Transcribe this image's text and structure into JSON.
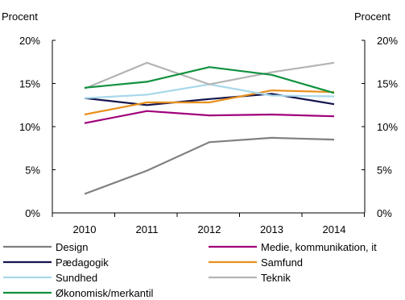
{
  "chart_data": {
    "type": "line",
    "ylabel_left": "Procent",
    "ylabel_right": "Procent",
    "x": [
      "2010",
      "2011",
      "2012",
      "2013",
      "2014"
    ],
    "ylim": [
      0,
      20
    ],
    "yticks": [
      "0%",
      "5%",
      "10%",
      "15%",
      "20%"
    ],
    "grid": false,
    "legend_position": "bottom",
    "series": [
      {
        "name": "Design",
        "color": "#808080",
        "values": [
          2.2,
          4.9,
          8.2,
          8.7,
          8.5
        ]
      },
      {
        "name": "Medie, kommunikation, it",
        "color": "#a0007a",
        "values": [
          10.4,
          11.8,
          11.3,
          11.4,
          11.2
        ]
      },
      {
        "name": "Pædagogik",
        "color": "#14144e",
        "values": [
          13.3,
          12.5,
          13.2,
          13.8,
          12.6
        ]
      },
      {
        "name": "Samfund",
        "color": "#e8901e",
        "values": [
          11.4,
          12.8,
          12.8,
          14.2,
          14.0
        ]
      },
      {
        "name": "Sundhed",
        "color": "#a8d8ea",
        "values": [
          13.3,
          13.7,
          14.9,
          13.6,
          13.5
        ]
      },
      {
        "name": "Teknik",
        "color": "#b4b4b4",
        "values": [
          14.4,
          17.4,
          14.9,
          16.3,
          17.4
        ]
      },
      {
        "name": "Økonomisk/merkantil",
        "color": "#10913e",
        "values": [
          14.5,
          15.2,
          16.9,
          16.0,
          13.9
        ]
      }
    ]
  }
}
